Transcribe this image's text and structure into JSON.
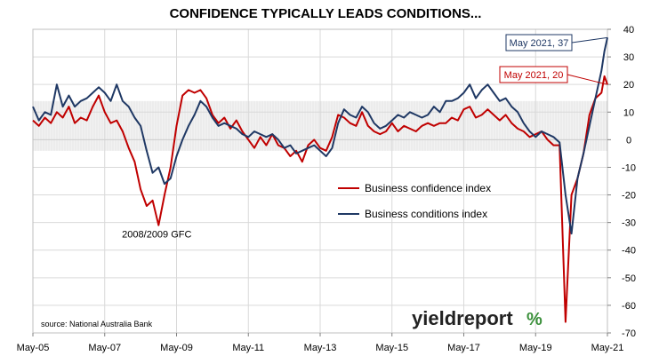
{
  "chart_data": {
    "type": "line",
    "title": "CONFIDENCE TYPICALLY LEADS CONDITIONS...",
    "xlabel": "",
    "ylabel": "",
    "xlim": [
      "2005-05",
      "2021-05"
    ],
    "ylim": [
      -70,
      40
    ],
    "x_ticks": [
      "May-05",
      "May-07",
      "May-09",
      "May-11",
      "May-13",
      "May-15",
      "May-17",
      "May-19",
      "May-21"
    ],
    "y_ticks": [
      40,
      30,
      20,
      10,
      0,
      -10,
      -20,
      -30,
      -40,
      -50,
      -60,
      -70
    ],
    "y_axis_side": "right",
    "grid": true,
    "shaded_band": [
      -4,
      14
    ],
    "legend_placement": "center-right",
    "series": [
      {
        "name": "Business confidence index",
        "color": "#c00000",
        "points": [
          [
            "2005-05",
            7
          ],
          [
            "2005-07",
            5
          ],
          [
            "2005-09",
            8
          ],
          [
            "2005-11",
            6
          ],
          [
            "2006-01",
            10
          ],
          [
            "2006-03",
            8
          ],
          [
            "2006-05",
            12
          ],
          [
            "2006-07",
            6
          ],
          [
            "2006-09",
            8
          ],
          [
            "2006-11",
            7
          ],
          [
            "2007-01",
            12
          ],
          [
            "2007-03",
            16
          ],
          [
            "2007-05",
            10
          ],
          [
            "2007-07",
            6
          ],
          [
            "2007-09",
            7
          ],
          [
            "2007-11",
            3
          ],
          [
            "2008-01",
            -3
          ],
          [
            "2008-03",
            -8
          ],
          [
            "2008-05",
            -18
          ],
          [
            "2008-07",
            -24
          ],
          [
            "2008-09",
            -22
          ],
          [
            "2008-11",
            -31
          ],
          [
            "2009-01",
            -20
          ],
          [
            "2009-03",
            -10
          ],
          [
            "2009-05",
            5
          ],
          [
            "2009-07",
            16
          ],
          [
            "2009-09",
            18
          ],
          [
            "2009-11",
            17
          ],
          [
            "2010-01",
            18
          ],
          [
            "2010-03",
            15
          ],
          [
            "2010-05",
            9
          ],
          [
            "2010-07",
            6
          ],
          [
            "2010-09",
            8
          ],
          [
            "2010-11",
            4
          ],
          [
            "2011-01",
            7
          ],
          [
            "2011-03",
            3
          ],
          [
            "2011-05",
            0
          ],
          [
            "2011-07",
            -3
          ],
          [
            "2011-09",
            1
          ],
          [
            "2011-11",
            -2
          ],
          [
            "2012-01",
            2
          ],
          [
            "2012-03",
            -2
          ],
          [
            "2012-05",
            -3
          ],
          [
            "2012-07",
            -6
          ],
          [
            "2012-09",
            -4
          ],
          [
            "2012-11",
            -8
          ],
          [
            "2013-01",
            -2
          ],
          [
            "2013-03",
            0
          ],
          [
            "2013-05",
            -3
          ],
          [
            "2013-07",
            -4
          ],
          [
            "2013-09",
            1
          ],
          [
            "2013-11",
            9
          ],
          [
            "2014-01",
            8
          ],
          [
            "2014-03",
            6
          ],
          [
            "2014-05",
            5
          ],
          [
            "2014-07",
            10
          ],
          [
            "2014-09",
            5
          ],
          [
            "2014-11",
            3
          ],
          [
            "2015-01",
            2
          ],
          [
            "2015-03",
            3
          ],
          [
            "2015-05",
            6
          ],
          [
            "2015-07",
            3
          ],
          [
            "2015-09",
            5
          ],
          [
            "2015-11",
            4
          ],
          [
            "2016-01",
            3
          ],
          [
            "2016-03",
            5
          ],
          [
            "2016-05",
            6
          ],
          [
            "2016-07",
            5
          ],
          [
            "2016-09",
            6
          ],
          [
            "2016-11",
            6
          ],
          [
            "2017-01",
            8
          ],
          [
            "2017-03",
            7
          ],
          [
            "2017-05",
            11
          ],
          [
            "2017-07",
            12
          ],
          [
            "2017-09",
            8
          ],
          [
            "2017-11",
            9
          ],
          [
            "2018-01",
            11
          ],
          [
            "2018-03",
            9
          ],
          [
            "2018-05",
            7
          ],
          [
            "2018-07",
            9
          ],
          [
            "2018-09",
            6
          ],
          [
            "2018-11",
            4
          ],
          [
            "2019-01",
            3
          ],
          [
            "2019-03",
            1
          ],
          [
            "2019-05",
            2
          ],
          [
            "2019-07",
            3
          ],
          [
            "2019-09",
            0
          ],
          [
            "2019-11",
            -2
          ],
          [
            "2020-01",
            -2
          ],
          [
            "2020-03",
            -66
          ],
          [
            "2020-05",
            -20
          ],
          [
            "2020-07",
            -14
          ],
          [
            "2020-09",
            -5
          ],
          [
            "2020-11",
            9
          ],
          [
            "2021-01",
            15
          ],
          [
            "2021-03",
            17
          ],
          [
            "2021-04",
            23
          ],
          [
            "2021-05",
            20
          ]
        ]
      },
      {
        "name": "Business conditions index",
        "color": "#1f3864",
        "points": [
          [
            "2005-05",
            12
          ],
          [
            "2005-07",
            7
          ],
          [
            "2005-09",
            10
          ],
          [
            "2005-11",
            9
          ],
          [
            "2006-01",
            20
          ],
          [
            "2006-03",
            12
          ],
          [
            "2006-05",
            16
          ],
          [
            "2006-07",
            12
          ],
          [
            "2006-09",
            14
          ],
          [
            "2006-11",
            15
          ],
          [
            "2007-01",
            17
          ],
          [
            "2007-03",
            19
          ],
          [
            "2007-05",
            17
          ],
          [
            "2007-07",
            14
          ],
          [
            "2007-09",
            20
          ],
          [
            "2007-11",
            14
          ],
          [
            "2008-01",
            12
          ],
          [
            "2008-03",
            8
          ],
          [
            "2008-05",
            5
          ],
          [
            "2008-07",
            -4
          ],
          [
            "2008-09",
            -12
          ],
          [
            "2008-11",
            -10
          ],
          [
            "2009-01",
            -16
          ],
          [
            "2009-03",
            -14
          ],
          [
            "2009-05",
            -6
          ],
          [
            "2009-07",
            0
          ],
          [
            "2009-09",
            5
          ],
          [
            "2009-11",
            9
          ],
          [
            "2010-01",
            14
          ],
          [
            "2010-03",
            12
          ],
          [
            "2010-05",
            8
          ],
          [
            "2010-07",
            5
          ],
          [
            "2010-09",
            6
          ],
          [
            "2010-11",
            5
          ],
          [
            "2011-01",
            4
          ],
          [
            "2011-03",
            2
          ],
          [
            "2011-05",
            1
          ],
          [
            "2011-07",
            3
          ],
          [
            "2011-09",
            2
          ],
          [
            "2011-11",
            1
          ],
          [
            "2012-01",
            2
          ],
          [
            "2012-03",
            0
          ],
          [
            "2012-05",
            -3
          ],
          [
            "2012-07",
            -2
          ],
          [
            "2012-09",
            -5
          ],
          [
            "2012-11",
            -4
          ],
          [
            "2013-01",
            -3
          ],
          [
            "2013-03",
            -2
          ],
          [
            "2013-05",
            -4
          ],
          [
            "2013-07",
            -6
          ],
          [
            "2013-09",
            -3
          ],
          [
            "2013-11",
            6
          ],
          [
            "2014-01",
            11
          ],
          [
            "2014-03",
            9
          ],
          [
            "2014-05",
            8
          ],
          [
            "2014-07",
            12
          ],
          [
            "2014-09",
            10
          ],
          [
            "2014-11",
            6
          ],
          [
            "2015-01",
            4
          ],
          [
            "2015-03",
            5
          ],
          [
            "2015-05",
            7
          ],
          [
            "2015-07",
            9
          ],
          [
            "2015-09",
            8
          ],
          [
            "2015-11",
            10
          ],
          [
            "2016-01",
            9
          ],
          [
            "2016-03",
            8
          ],
          [
            "2016-05",
            9
          ],
          [
            "2016-07",
            12
          ],
          [
            "2016-09",
            10
          ],
          [
            "2016-11",
            14
          ],
          [
            "2017-01",
            14
          ],
          [
            "2017-03",
            15
          ],
          [
            "2017-05",
            17
          ],
          [
            "2017-07",
            20
          ],
          [
            "2017-09",
            15
          ],
          [
            "2017-11",
            18
          ],
          [
            "2018-01",
            20
          ],
          [
            "2018-03",
            17
          ],
          [
            "2018-05",
            14
          ],
          [
            "2018-07",
            15
          ],
          [
            "2018-09",
            12
          ],
          [
            "2018-11",
            10
          ],
          [
            "2019-01",
            6
          ],
          [
            "2019-03",
            3
          ],
          [
            "2019-05",
            1
          ],
          [
            "2019-07",
            3
          ],
          [
            "2019-09",
            2
          ],
          [
            "2019-11",
            1
          ],
          [
            "2020-01",
            -1
          ],
          [
            "2020-03",
            -20
          ],
          [
            "2020-05",
            -34
          ],
          [
            "2020-07",
            -14
          ],
          [
            "2020-09",
            -5
          ],
          [
            "2020-11",
            5
          ],
          [
            "2021-01",
            15
          ],
          [
            "2021-03",
            25
          ],
          [
            "2021-04",
            32
          ],
          [
            "2021-05",
            37
          ]
        ]
      }
    ],
    "annotations": [
      {
        "text": "2008/2009 GFC",
        "x": "2008-11",
        "y": -31
      },
      {
        "text": "May 2021, 37",
        "x": "2021-05",
        "y": 37,
        "series": "Business conditions index"
      },
      {
        "text": "May 2021, 20",
        "x": "2021-05",
        "y": 20,
        "series": "Business confidence index"
      }
    ],
    "source": "source: National Australia Bank",
    "logo": {
      "text": "yieldreport",
      "symbol": "%"
    }
  }
}
